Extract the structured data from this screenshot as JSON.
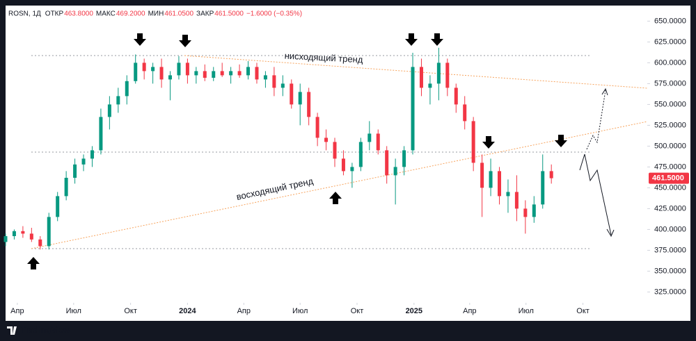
{
  "chart_data": {
    "type": "candlestick",
    "header": {
      "symbol": "ROSN, 1Д",
      "items": [
        {
          "label": "ОТКР",
          "value": "463.8000"
        },
        {
          "label": "МАКС",
          "value": "469.2000"
        },
        {
          "label": "МИН",
          "value": "461.0500"
        },
        {
          "label": "ЗАКР",
          "value": "461.5000"
        }
      ],
      "change": "−1.6000 (−0.35%)"
    },
    "up_color": "#089981",
    "down_color": "#f23645",
    "x": [
      "2023-03-13",
      "2023-03-27",
      "2023-04-10",
      "2023-04-24",
      "2023-05-08",
      "2023-05-22",
      "2023-06-05",
      "2023-06-19",
      "2023-07-03",
      "2023-07-17",
      "2023-07-31",
      "2023-08-14",
      "2023-08-28",
      "2023-09-11",
      "2023-09-25",
      "2023-10-09",
      "2023-10-23",
      "2023-11-06",
      "2023-11-20",
      "2023-12-04",
      "2023-12-18",
      "2024-01-01",
      "2024-01-15",
      "2024-01-29",
      "2024-02-12",
      "2024-02-26",
      "2024-03-11",
      "2024-03-25",
      "2024-04-08",
      "2024-04-22",
      "2024-05-06",
      "2024-05-20",
      "2024-06-03",
      "2024-06-17",
      "2024-07-01",
      "2024-07-15",
      "2024-07-29",
      "2024-08-12",
      "2024-08-26",
      "2024-09-09",
      "2024-09-23",
      "2024-10-07",
      "2024-10-21",
      "2024-11-04",
      "2024-11-18",
      "2024-12-02",
      "2024-12-16",
      "2024-12-30",
      "2025-01-13",
      "2025-01-27",
      "2025-02-10",
      "2025-02-24",
      "2025-03-10",
      "2025-03-24",
      "2025-04-07",
      "2025-04-21",
      "2025-05-05",
      "2025-05-19",
      "2025-06-02",
      "2025-06-16",
      "2025-06-30",
      "2025-07-14",
      "2025-07-28",
      "2025-08-11"
    ],
    "open": [
      385,
      392,
      398,
      395,
      388,
      380,
      415,
      440,
      462,
      478,
      485,
      495,
      535,
      550,
      560,
      578,
      600,
      590,
      595,
      580,
      585,
      600,
      585,
      590,
      582,
      590,
      585,
      590,
      585,
      595,
      580,
      585,
      570,
      575,
      550,
      565,
      535,
      510,
      505,
      485,
      470,
      475,
      505,
      515,
      495,
      465,
      475,
      495,
      595,
      570,
      575,
      600,
      570,
      550,
      530,
      480,
      450,
      470,
      440,
      445,
      425,
      415,
      430,
      470
    ],
    "high": [
      395,
      400,
      404,
      402,
      392,
      420,
      445,
      470,
      485,
      490,
      500,
      545,
      560,
      570,
      585,
      610,
      605,
      600,
      605,
      590,
      608,
      605,
      595,
      598,
      595,
      600,
      595,
      598,
      602,
      600,
      590,
      595,
      585,
      580,
      575,
      570,
      540,
      520,
      510,
      495,
      480,
      510,
      530,
      520,
      500,
      485,
      500,
      612,
      605,
      585,
      618,
      605,
      575,
      560,
      535,
      490,
      485,
      475,
      460,
      465,
      435,
      440,
      490,
      478
    ],
    "low": [
      380,
      388,
      390,
      385,
      376,
      376,
      410,
      435,
      455,
      470,
      475,
      490,
      520,
      540,
      550,
      575,
      580,
      575,
      570,
      555,
      580,
      575,
      575,
      578,
      578,
      583,
      575,
      582,
      580,
      575,
      570,
      560,
      560,
      545,
      525,
      525,
      500,
      495,
      475,
      465,
      450,
      470,
      495,
      490,
      455,
      430,
      465,
      490,
      560,
      550,
      555,
      560,
      540,
      520,
      470,
      415,
      440,
      430,
      420,
      410,
      395,
      408,
      425,
      455
    ],
    "close": [
      392,
      398,
      395,
      388,
      380,
      415,
      440,
      462,
      478,
      485,
      495,
      535,
      550,
      560,
      578,
      600,
      590,
      595,
      580,
      585,
      600,
      585,
      590,
      582,
      590,
      585,
      590,
      585,
      595,
      580,
      585,
      570,
      575,
      550,
      565,
      535,
      510,
      505,
      485,
      470,
      475,
      505,
      515,
      495,
      465,
      475,
      495,
      595,
      570,
      575,
      600,
      570,
      550,
      530,
      480,
      450,
      470,
      440,
      445,
      425,
      415,
      430,
      470,
      461.5
    ],
    "xlim": [
      "2023-03-13",
      "2026-01-13"
    ],
    "xticks": [
      {
        "value": "2023-04-01",
        "label": "Апр"
      },
      {
        "value": "2023-07-01",
        "label": "Июл"
      },
      {
        "value": "2023-10-01",
        "label": "Окт"
      },
      {
        "value": "2024-01-01",
        "label": "2024"
      },
      {
        "value": "2024-04-01",
        "label": "Апр"
      },
      {
        "value": "2024-07-01",
        "label": "Июл"
      },
      {
        "value": "2024-10-01",
        "label": "Окт"
      },
      {
        "value": "2025-01-01",
        "label": "2025"
      },
      {
        "value": "2025-04-01",
        "label": "Апр"
      },
      {
        "value": "2025-07-01",
        "label": "Июл"
      },
      {
        "value": "2025-10-01",
        "label": "Окт"
      }
    ],
    "ylim": [
      312,
      667
    ],
    "yticks": [
      {
        "value": 325,
        "label": "325.0000"
      },
      {
        "value": 350,
        "label": "350.0000"
      },
      {
        "value": 375,
        "label": "375.0000"
      },
      {
        "value": 400,
        "label": "400.0000"
      },
      {
        "value": 425,
        "label": "425.0000"
      },
      {
        "value": 450,
        "label": "450.0000"
      },
      {
        "value": 475,
        "label": "475.0000"
      },
      {
        "value": 500,
        "label": "500.0000"
      },
      {
        "value": 525,
        "label": "525.0000"
      },
      {
        "value": 550,
        "label": "550.0000"
      },
      {
        "value": 575,
        "label": "575.0000"
      },
      {
        "value": 600,
        "label": "600.0000"
      },
      {
        "value": 625,
        "label": "625.0000"
      },
      {
        "value": 650,
        "label": "650.0000"
      }
    ],
    "last_price": {
      "value": 461.5,
      "label": "461.5000"
    },
    "annotations": [
      "нисходящий тренд",
      "восходящий тренд"
    ],
    "brand": "TradingView"
  }
}
